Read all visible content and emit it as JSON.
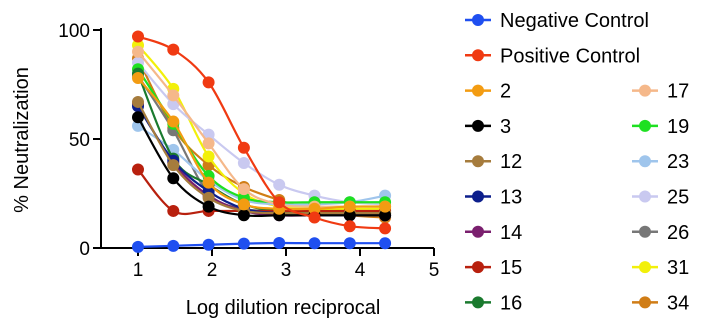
{
  "chart_data": {
    "type": "scatter",
    "title": "",
    "xlabel": "Log dilution reciprocal",
    "ylabel": "% Neutralization",
    "xlim": [
      0.5,
      5
    ],
    "ylim": [
      0,
      100
    ],
    "xticks": [
      "1",
      "2",
      "3",
      "4",
      "5"
    ],
    "yticks": [
      "0",
      "50",
      "100"
    ],
    "grid": false,
    "legend_position": "right",
    "x": [
      1.0,
      1.477,
      1.954,
      2.431,
      2.908,
      3.385,
      3.862,
      4.339
    ],
    "series": [
      {
        "name": "Negative Control",
        "color": "#1f4ff0",
        "values": [
          0.5,
          1.0,
          1.5,
          2.0,
          2.3,
          2.2,
          2.2,
          2.2
        ]
      },
      {
        "name": "Positive Control",
        "color": "#f03a12",
        "values": [
          97,
          91,
          76,
          46,
          21,
          14,
          10,
          9
        ]
      },
      {
        "name": "2",
        "color": "#f39c12",
        "values": [
          78,
          58,
          30,
          20,
          18,
          18,
          19,
          19
        ]
      },
      {
        "name": "3",
        "color": "#000000",
        "values": [
          60,
          32,
          19,
          15,
          15,
          15,
          15,
          15
        ]
      },
      {
        "name": "12",
        "color": "#a67c3d",
        "values": [
          67,
          38,
          23,
          17,
          16,
          16,
          16,
          16
        ]
      },
      {
        "name": "13",
        "color": "#0d1f8c",
        "values": [
          65,
          40,
          26,
          18,
          16,
          15,
          15,
          15
        ]
      },
      {
        "name": "14",
        "color": "#7a1f6e",
        "values": [
          66,
          39,
          24,
          17,
          15,
          15,
          15,
          15
        ]
      },
      {
        "name": "15",
        "color": "#b8200e",
        "values": [
          36,
          17,
          17,
          17,
          17,
          17,
          17,
          17
        ]
      },
      {
        "name": "16",
        "color": "#1a7a2e",
        "values": [
          80,
          41,
          29,
          20,
          17,
          16,
          16,
          16
        ]
      },
      {
        "name": "17",
        "color": "#f5b88a",
        "values": [
          90,
          70,
          48,
          27,
          20,
          19,
          19,
          19
        ]
      },
      {
        "name": "19",
        "color": "#1ee021",
        "values": [
          82,
          57,
          33,
          23,
          21,
          21,
          21,
          21
        ]
      },
      {
        "name": "23",
        "color": "#9fc5ec",
        "values": [
          56,
          45,
          31,
          22,
          20,
          20,
          21,
          24
        ]
      },
      {
        "name": "25",
        "color": "#c9c9f0",
        "values": [
          85,
          66,
          52,
          39,
          29,
          24,
          21,
          20
        ]
      },
      {
        "name": "26",
        "color": "#777777",
        "values": [
          79,
          54,
          25,
          18,
          17,
          16,
          15,
          15
        ]
      },
      {
        "name": "31",
        "color": "#f2f00a",
        "values": [
          93,
          73,
          42,
          25,
          19,
          18,
          18,
          18
        ]
      },
      {
        "name": "34",
        "color": "#d07d16",
        "values": [
          87,
          55,
          38,
          28,
          22,
          17,
          15,
          14
        ]
      }
    ]
  }
}
